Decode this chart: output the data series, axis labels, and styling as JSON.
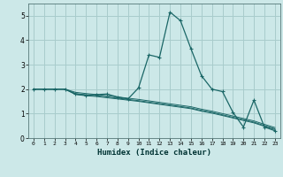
{
  "xlabel": "Humidex (Indice chaleur)",
  "background_color": "#cce8e8",
  "grid_color": "#a8cccc",
  "line_color": "#1a6666",
  "xlim": [
    -0.5,
    23.5
  ],
  "ylim": [
    0,
    5.5
  ],
  "xtick_labels": [
    "0",
    "1",
    "2",
    "3",
    "4",
    "5",
    "6",
    "7",
    "8",
    "9",
    "10",
    "11",
    "12",
    "13",
    "14",
    "15",
    "16",
    "17",
    "18",
    "19",
    "20",
    "21",
    "22",
    "23"
  ],
  "yticks": [
    0,
    1,
    2,
    3,
    4,
    5
  ],
  "series_main": [
    2.0,
    2.0,
    2.0,
    2.0,
    1.8,
    1.75,
    1.78,
    1.8,
    1.68,
    1.6,
    2.05,
    3.4,
    3.3,
    5.15,
    4.8,
    3.65,
    2.55,
    2.0,
    1.9,
    1.05,
    0.45,
    1.55,
    0.45,
    0.3
  ],
  "series_lines": [
    [
      2.0,
      2.0,
      2.0,
      2.0,
      1.78,
      1.73,
      1.7,
      1.65,
      1.6,
      1.55,
      1.5,
      1.44,
      1.38,
      1.32,
      1.26,
      1.2,
      1.1,
      1.02,
      0.92,
      0.82,
      0.72,
      0.62,
      0.48,
      0.35
    ],
    [
      2.0,
      2.0,
      2.0,
      2.0,
      1.82,
      1.77,
      1.73,
      1.68,
      1.63,
      1.58,
      1.53,
      1.47,
      1.41,
      1.35,
      1.29,
      1.23,
      1.13,
      1.05,
      0.95,
      0.85,
      0.75,
      0.65,
      0.51,
      0.38
    ],
    [
      2.0,
      2.0,
      2.0,
      2.0,
      1.87,
      1.82,
      1.78,
      1.73,
      1.68,
      1.63,
      1.58,
      1.52,
      1.46,
      1.4,
      1.34,
      1.28,
      1.18,
      1.1,
      1.0,
      0.9,
      0.8,
      0.7,
      0.56,
      0.43
    ]
  ]
}
